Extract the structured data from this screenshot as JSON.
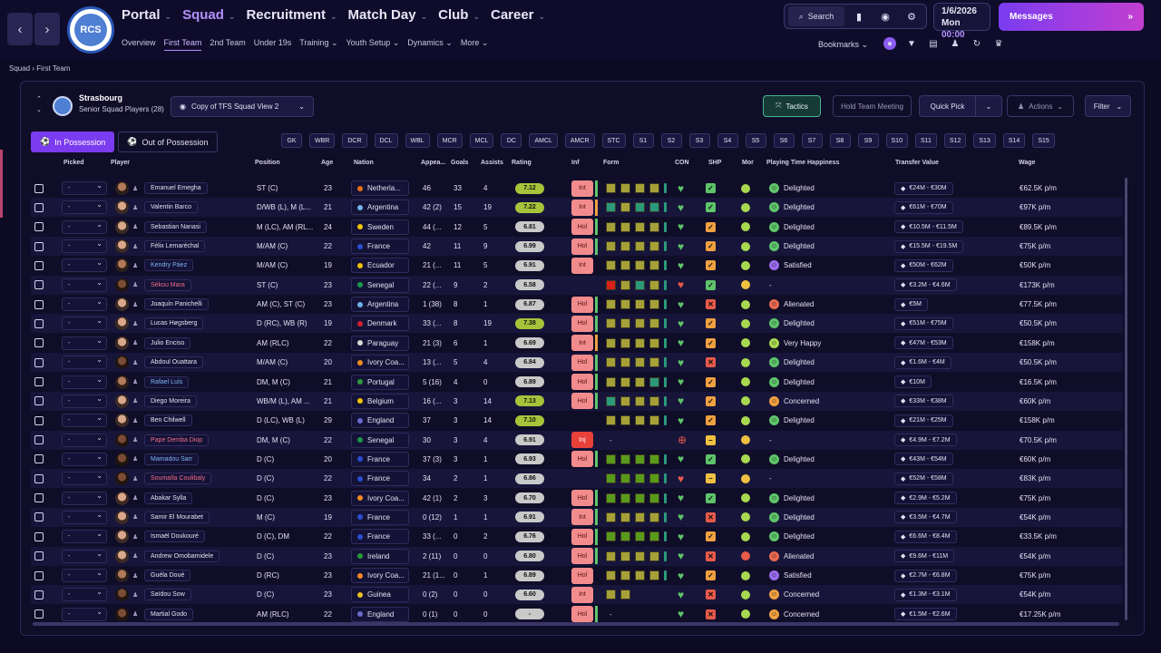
{
  "nav": {
    "back": "‹",
    "forward": "›",
    "crest_text": "RCS",
    "main": [
      {
        "label": "Portal",
        "active": false
      },
      {
        "label": "Squad",
        "active": true
      },
      {
        "label": "Recruitment",
        "active": false
      },
      {
        "label": "Match Day",
        "active": false
      },
      {
        "label": "Club",
        "active": false
      },
      {
        "label": "Career",
        "active": false
      }
    ],
    "sub": [
      {
        "label": "Overview",
        "active": false
      },
      {
        "label": "First Team",
        "active": true
      },
      {
        "label": "2nd Team",
        "active": false
      },
      {
        "label": "Under 19s",
        "active": false
      },
      {
        "label": "Training ⌄",
        "active": false
      },
      {
        "label": "Youth Setup ⌄",
        "active": false
      },
      {
        "label": "Dynamics ⌄",
        "active": false
      },
      {
        "label": "More ⌄",
        "active": false
      }
    ]
  },
  "toolbar": {
    "search": "Search",
    "date": "1/6/2026",
    "day": "Mon",
    "time": "00:00",
    "messages": "Messages",
    "bookmarks": "Bookmarks"
  },
  "breadcrumb": {
    "parent": "Squad",
    "current": "First Team"
  },
  "squad": {
    "club": "Strasbourg",
    "subtitle": "Senior Squad Players (28)",
    "view": "Copy of TFS Squad View 2",
    "tactics": "Tactics",
    "hold_meeting": "Hold Team Meeting",
    "quick_pick": "Quick Pick",
    "actions": "Actions",
    "filter": "Filter"
  },
  "tabs": {
    "in_possession": "In Possession",
    "out_possession": "Out of Possession"
  },
  "positions": [
    "GK",
    "WBR",
    "DCR",
    "DCL",
    "WBL",
    "MCR",
    "MCL",
    "DC",
    "AMCL",
    "AMCR",
    "STC",
    "S1",
    "S2",
    "S3",
    "S4",
    "S5",
    "S6",
    "S7",
    "S8",
    "S9",
    "S10",
    "S11",
    "S12",
    "S13",
    "S14",
    "S15"
  ],
  "columns": {
    "picked": "Picked",
    "player": "Player",
    "position": "Position",
    "age": "Age",
    "nation": "Nation",
    "apps": "Appea...",
    "goals": "Goals",
    "assists": "Assists",
    "rating": "Rating",
    "inf": "Inf",
    "form": "Form",
    "con": "CON",
    "shp": "SHP",
    "mor": "Mor",
    "pth": "Playing Time Happiness",
    "tv": "Transfer Value",
    "wage": "Wage"
  },
  "colors": {
    "rating_high": "#a6c43a",
    "rating_mid": "#c9c9c9",
    "form_good": "#2a9a7a",
    "form_avg": "#a6a038",
    "form_strong": "#5a9a1a",
    "form_bad": "#d8201a",
    "accent": "#b690ff"
  },
  "players": [
    {
      "picked": "-",
      "name": "Emanuel Emegha",
      "pos": "ST (C)",
      "age": "23",
      "nation": "Netherla...",
      "apps": "46",
      "goals": "33",
      "assists": "4",
      "rating": "7.12",
      "inf": "Int",
      "form": [
        "a",
        "a",
        "a",
        "a",
        "g"
      ],
      "shp": "ok",
      "mor": "ok",
      "pth": "Delighted",
      "tv": "€24M - €30M",
      "wage": "€62.5K p/m"
    },
    {
      "picked": "-",
      "name": "Valentin Barco",
      "pos": "D/WB (L), M (L...",
      "age": "21",
      "nation": "Argentina",
      "apps": "42 (2)",
      "goals": "15",
      "assists": "19",
      "rating": "7.22",
      "inf": "Int",
      "form": [
        "t",
        "a",
        "t",
        "t",
        "t"
      ],
      "shp": "ok",
      "mor": "ok",
      "pth": "Delighted",
      "tv": "€61M - €70M",
      "wage": "€97K p/m"
    },
    {
      "picked": "-",
      "name": "Sebastian Nanasi",
      "pos": "M (LC), AM (RL...",
      "age": "24",
      "nation": "Sweden",
      "apps": "44 (...",
      "goals": "12",
      "assists": "5",
      "rating": "6.81",
      "inf": "Hol",
      "form": [
        "a",
        "a",
        "a",
        "a",
        "g"
      ],
      "shp": "warn",
      "mor": "ok",
      "pth": "Delighted",
      "tv": "€10.5M - €11.5M",
      "wage": "€89.5K p/m"
    },
    {
      "picked": "-",
      "name": "Félix Lemaréchal",
      "pos": "M/AM (C)",
      "age": "22",
      "nation": "France",
      "apps": "42",
      "goals": "11",
      "assists": "9",
      "rating": "6.99",
      "inf": "Hol",
      "form": [
        "a",
        "a",
        "a",
        "a",
        "g"
      ],
      "shp": "warn",
      "mor": "ok",
      "pth": "Delighted",
      "tv": "€15.5M - €19.5M",
      "wage": "€75K p/m"
    },
    {
      "picked": "-",
      "name": "Kendry Páez",
      "loan": true,
      "pos": "M/AM (C)",
      "age": "19",
      "nation": "Ecuador",
      "apps": "21 (...",
      "goals": "11",
      "assists": "5",
      "rating": "6.91",
      "inf": "Int",
      "form": [
        "a",
        "a",
        "a",
        "a",
        "g"
      ],
      "shp": "warn",
      "mor": "ok",
      "pth": "Satisfied",
      "tv": "€50M - €62M",
      "wage": "€50K p/m"
    },
    {
      "picked": "-",
      "name": "Sékou Mara",
      "inj": true,
      "pos": "ST (C)",
      "age": "23",
      "nation": "Senegal",
      "apps": "22 (...",
      "goals": "9",
      "assists": "2",
      "rating": "6.58",
      "inf": "",
      "form": [
        "r",
        "a",
        "t",
        "a",
        "g"
      ],
      "shp": "ok",
      "mor": "yel",
      "pth": "-",
      "tv": "€3.2M - €4.6M",
      "wage": "€173K p/m"
    },
    {
      "picked": "-",
      "name": "Joaquín Panichelli",
      "pos": "AM (C), ST (C)",
      "age": "23",
      "nation": "Argentina",
      "apps": "1 (38)",
      "goals": "8",
      "assists": "1",
      "rating": "6.87",
      "inf": "Hol",
      "form": [
        "a",
        "a",
        "a",
        "a",
        "g"
      ],
      "shp": "bad",
      "mor": "ok",
      "pth": "Alienated",
      "tv": "€5M",
      "wage": "€77.5K p/m"
    },
    {
      "picked": "-",
      "name": "Lucas Høgsberg",
      "pos": "D (RC), WB (R)",
      "age": "19",
      "nation": "Denmark",
      "apps": "33 (...",
      "goals": "8",
      "assists": "19",
      "rating": "7.38",
      "inf": "Hol",
      "form": [
        "a",
        "a",
        "a",
        "a",
        "g"
      ],
      "shp": "warn",
      "mor": "ok",
      "pth": "Delighted",
      "tv": "€51M - €75M",
      "wage": "€50.5K p/m"
    },
    {
      "picked": "-",
      "name": "Julio Enciso",
      "pos": "AM (RLC)",
      "age": "22",
      "nation": "Paraguay",
      "apps": "21 (3)",
      "goals": "6",
      "assists": "1",
      "rating": "6.69",
      "inf": "Int",
      "form": [
        "a",
        "a",
        "a",
        "a",
        "g"
      ],
      "shp": "warn",
      "mor": "ok",
      "pth": "Very Happy",
      "tv": "€47M - €53M",
      "wage": "€158K p/m"
    },
    {
      "picked": "-",
      "name": "Abdoul Ouattara",
      "pos": "M/AM (C)",
      "age": "20",
      "nation": "Ivory Coa...",
      "apps": "13 (...",
      "goals": "5",
      "assists": "4",
      "rating": "6.84",
      "inf": "Hol",
      "form": [
        "a",
        "a",
        "a",
        "a",
        "g"
      ],
      "shp": "bad",
      "mor": "ok",
      "pth": "Delighted",
      "tv": "€1.6M - €4M",
      "wage": "€50.5K p/m"
    },
    {
      "picked": "-",
      "name": "Rafael Luís",
      "loan": true,
      "pos": "DM, M (C)",
      "age": "21",
      "nation": "Portugal",
      "apps": "5 (16)",
      "goals": "4",
      "assists": "0",
      "rating": "6.89",
      "inf": "Hol",
      "form": [
        "a",
        "a",
        "a",
        "t",
        "g"
      ],
      "shp": "warn",
      "mor": "ok",
      "pth": "Delighted",
      "tv": "€10M",
      "wage": "€16.5K p/m"
    },
    {
      "picked": "-",
      "name": "Diego Moreira",
      "pos": "WB/M (L), AM ...",
      "age": "21",
      "nation": "Belgium",
      "apps": "16 (...",
      "goals": "3",
      "assists": "14",
      "rating": "7.13",
      "inf": "Hol",
      "form": [
        "t",
        "a",
        "a",
        "a",
        "g"
      ],
      "shp": "warn",
      "mor": "ok",
      "pth": "Concerned",
      "tv": "€33M - €38M",
      "wage": "€60K p/m"
    },
    {
      "picked": "-",
      "name": "Ben Chilwell",
      "pos": "D (LC), WB (L)",
      "age": "29",
      "nation": "England",
      "apps": "37",
      "goals": "3",
      "assists": "14",
      "rating": "7.10",
      "inf": "",
      "form": [
        "a",
        "a",
        "a",
        "a",
        "g"
      ],
      "shp": "warn",
      "mor": "ok",
      "pth": "Delighted",
      "tv": "€21M - €25M",
      "wage": "€158K p/m"
    },
    {
      "picked": "-",
      "name": "Pape Demba Diop",
      "inj": true,
      "pos": "DM, M (C)",
      "age": "22",
      "nation": "Senegal",
      "apps": "30",
      "goals": "3",
      "assists": "4",
      "rating": "6.91",
      "inf": "Inj",
      "form": [],
      "shp": "min",
      "mor": "yel",
      "pth": "-",
      "tv": "€4.9M - €7.2M",
      "wage": "€70.5K p/m"
    },
    {
      "picked": "-",
      "name": "Mamadou Sarr",
      "loan": true,
      "pos": "D (C)",
      "age": "20",
      "nation": "France",
      "apps": "37 (3)",
      "goals": "3",
      "assists": "1",
      "rating": "6.93",
      "inf": "Hol",
      "form": [
        "s",
        "s",
        "s",
        "s",
        "g"
      ],
      "shp": "ok",
      "mor": "ok",
      "pth": "Delighted",
      "tv": "€43M - €54M",
      "wage": "€60K p/m"
    },
    {
      "picked": "-",
      "name": "Soumaïla Coulibaly",
      "inj": true,
      "pos": "D (C)",
      "age": "22",
      "nation": "France",
      "apps": "34",
      "goals": "2",
      "assists": "1",
      "rating": "6.86",
      "inf": "",
      "form": [
        "s",
        "s",
        "s",
        "s",
        "g"
      ],
      "shp": "min",
      "mor": "yel",
      "pth": "-",
      "tv": "€52M - €58M",
      "wage": "€83K p/m"
    },
    {
      "picked": "-",
      "name": "Abakar Sylla",
      "pos": "D (C)",
      "age": "23",
      "nation": "Ivory Coa...",
      "apps": "42 (1)",
      "goals": "2",
      "assists": "3",
      "rating": "6.70",
      "inf": "Hol",
      "form": [
        "s",
        "s",
        "s",
        "s",
        "g"
      ],
      "shp": "ok",
      "mor": "ok",
      "pth": "Delighted",
      "tv": "€2.9M - €5.2M",
      "wage": "€75K p/m"
    },
    {
      "picked": "-",
      "name": "Samir El Mourabet",
      "pos": "M (C)",
      "age": "19",
      "nation": "France",
      "apps": "0 (12)",
      "goals": "1",
      "assists": "1",
      "rating": "6.91",
      "inf": "Int",
      "form": [
        "a",
        "a",
        "a",
        "a",
        "g"
      ],
      "shp": "bad",
      "mor": "ok",
      "pth": "Delighted",
      "tv": "€3.5M - €4.7M",
      "wage": "€54K p/m"
    },
    {
      "picked": "-",
      "name": "Ismaël Doukouré",
      "pos": "D (C), DM",
      "age": "22",
      "nation": "France",
      "apps": "33 (...",
      "goals": "0",
      "assists": "2",
      "rating": "6.76",
      "inf": "Hol",
      "form": [
        "s",
        "s",
        "s",
        "s",
        "g"
      ],
      "shp": "warn",
      "mor": "ok",
      "pth": "Delighted",
      "tv": "€6.6M - €8.4M",
      "wage": "€33.5K p/m"
    },
    {
      "picked": "-",
      "name": "Andrew Omobamidele",
      "pos": "D (C)",
      "age": "23",
      "nation": "Ireland",
      "apps": "2 (11)",
      "goals": "0",
      "assists": "0",
      "rating": "6.80",
      "inf": "Hol",
      "form": [
        "a",
        "a",
        "a",
        "a",
        "g"
      ],
      "shp": "bad",
      "mor": "red",
      "pth": "Alienated",
      "tv": "€9.6M - €11M",
      "wage": "€54K p/m"
    },
    {
      "picked": "-",
      "name": "Guéla Doué",
      "pos": "D (RC)",
      "age": "23",
      "nation": "Ivory Coa...",
      "apps": "21 (1...",
      "goals": "0",
      "assists": "1",
      "rating": "6.89",
      "inf": "Hol",
      "form": [
        "a",
        "a",
        "a",
        "a",
        "g"
      ],
      "shp": "warn",
      "mor": "ok",
      "pth": "Satisfied",
      "tv": "€2.7M - €6.8M",
      "wage": "€75K p/m"
    },
    {
      "picked": "-",
      "name": "Saïdou Sow",
      "pos": "D (C)",
      "age": "23",
      "nation": "Guinea",
      "apps": "0 (2)",
      "goals": "0",
      "assists": "0",
      "rating": "6.60",
      "inf": "Int",
      "form": [
        "a",
        "a"
      ],
      "shp": "bad",
      "mor": "ok",
      "pth": "Concerned",
      "tv": "€1.3M - €3.1M",
      "wage": "€54K p/m"
    },
    {
      "picked": "-",
      "name": "Martial Godo",
      "pos": "AM (RLC)",
      "age": "22",
      "nation": "England",
      "apps": "0 (1)",
      "goals": "0",
      "assists": "0",
      "rating": "-",
      "inf": "Hol",
      "form": [],
      "shp": "bad",
      "mor": "ok",
      "pth": "Concerned",
      "tv": "€1.5M - €2.6M",
      "wage": "€17.25K p/m"
    }
  ]
}
